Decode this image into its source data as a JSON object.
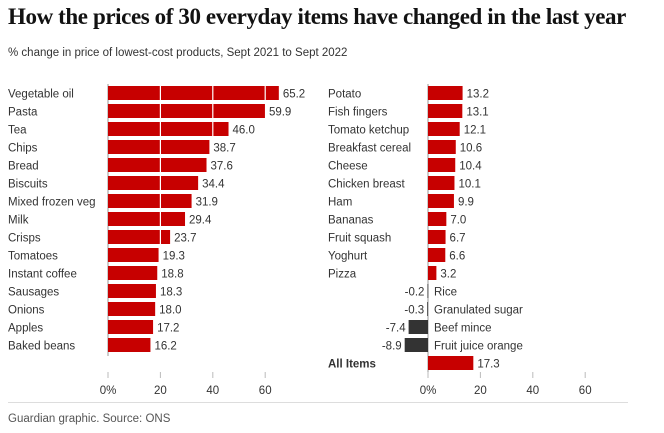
{
  "title": "How the prices of 30 everyday items have changed in the last year",
  "subtitle": "% change in price of lowest-cost products, Sept 2021 to Sept 2022",
  "source": "Guardian graphic. Source: ONS",
  "colors": {
    "increase": "#c70000",
    "decrease": "#333333",
    "all_items": "#c70000"
  },
  "chart_data": [
    {
      "type": "bar",
      "orientation": "horizontal",
      "categories": [
        "Vegetable oil",
        "Pasta",
        "Tea",
        "Chips",
        "Bread",
        "Biscuits",
        "Mixed frozen veg",
        "Milk",
        "Crisps",
        "Tomatoes",
        "Instant coffee",
        "Sausages",
        "Onions",
        "Apples",
        "Baked beans"
      ],
      "values": [
        65.2,
        59.9,
        46.0,
        38.7,
        37.6,
        34.4,
        31.9,
        29.4,
        23.7,
        19.3,
        18.8,
        18.3,
        18.0,
        17.2,
        16.2
      ],
      "x_ticks": [
        "0%",
        "20",
        "40",
        "60"
      ],
      "xlim": [
        0,
        70
      ],
      "grid": true
    },
    {
      "type": "bar",
      "orientation": "horizontal",
      "categories": [
        "Potato",
        "Fish fingers",
        "Tomato ketchup",
        "Breakfast cereal",
        "Cheese",
        "Chicken breast",
        "Ham",
        "Bananas",
        "Fruit squash",
        "Yoghurt",
        "Pizza",
        "Rice",
        "Granulated sugar",
        "Beef mince",
        "Fruit juice orange",
        "All Items"
      ],
      "values": [
        13.2,
        13.1,
        12.1,
        10.6,
        10.4,
        10.1,
        9.9,
        7.0,
        6.7,
        6.6,
        3.2,
        -0.2,
        -0.3,
        -7.4,
        -8.9,
        17.3
      ],
      "x_ticks": [
        "0%",
        "20",
        "40",
        "60"
      ],
      "xlim": [
        -10,
        70
      ],
      "grid": true
    }
  ]
}
